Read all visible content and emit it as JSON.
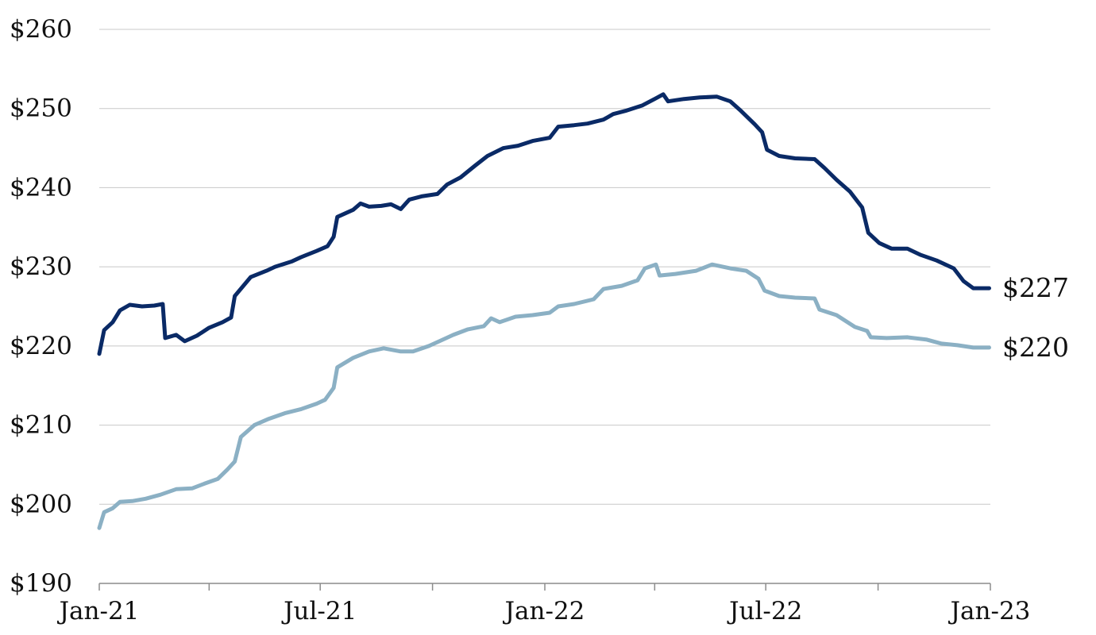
{
  "chart_data": {
    "type": "line",
    "title": "",
    "xlabel": "",
    "ylabel": "",
    "ylim": [
      190,
      260
    ],
    "xlim": [
      "2021-01-01",
      "2023-01-01"
    ],
    "y_ticks": [
      190,
      200,
      210,
      220,
      230,
      240,
      250,
      260
    ],
    "y_tick_labels": [
      "$190",
      "$200",
      "$210",
      "$220",
      "$230",
      "$240",
      "$250",
      "$260"
    ],
    "x_ticks": [
      "2021-01-01",
      "2021-04-01",
      "2021-07-01",
      "2021-10-01",
      "2022-01-01",
      "2022-04-01",
      "2022-07-01",
      "2022-10-01",
      "2023-01-01"
    ],
    "x_tick_labels": [
      {
        "date": "2021-01-01",
        "label": "Jan-21"
      },
      {
        "date": "2021-07-01",
        "label": "Jul-21"
      },
      {
        "date": "2022-01-01",
        "label": "Jan-22"
      },
      {
        "date": "2022-07-01",
        "label": "Jul-22"
      },
      {
        "date": "2023-01-01",
        "label": "Jan-23"
      }
    ],
    "grid": true,
    "legend": "none",
    "series": [
      {
        "color": "#0a2a66",
        "end_label": "$227",
        "points": [
          [
            "2021-01-01",
            219.0
          ],
          [
            "2021-01-05",
            222.0
          ],
          [
            "2021-01-12",
            223.0
          ],
          [
            "2021-01-18",
            224.5
          ],
          [
            "2021-01-26",
            225.2
          ],
          [
            "2021-02-05",
            225.0
          ],
          [
            "2021-02-15",
            225.1
          ],
          [
            "2021-02-22",
            225.3
          ],
          [
            "2021-02-24",
            221.0
          ],
          [
            "2021-03-05",
            221.4
          ],
          [
            "2021-03-12",
            220.6
          ],
          [
            "2021-03-22",
            221.3
          ],
          [
            "2021-04-01",
            222.3
          ],
          [
            "2021-04-12",
            223.0
          ],
          [
            "2021-04-19",
            223.6
          ],
          [
            "2021-04-22",
            226.3
          ],
          [
            "2021-05-05",
            228.7
          ],
          [
            "2021-05-18",
            229.5
          ],
          [
            "2021-05-25",
            230.0
          ],
          [
            "2021-06-08",
            230.7
          ],
          [
            "2021-06-15",
            231.2
          ],
          [
            "2021-06-28",
            232.0
          ],
          [
            "2021-07-07",
            232.6
          ],
          [
            "2021-07-12",
            233.8
          ],
          [
            "2021-07-15",
            236.3
          ],
          [
            "2021-07-28",
            237.2
          ],
          [
            "2021-08-03",
            238.0
          ],
          [
            "2021-08-10",
            237.6
          ],
          [
            "2021-08-20",
            237.7
          ],
          [
            "2021-08-28",
            237.9
          ],
          [
            "2021-09-05",
            237.3
          ],
          [
            "2021-09-12",
            238.5
          ],
          [
            "2021-09-22",
            238.9
          ],
          [
            "2021-10-05",
            239.2
          ],
          [
            "2021-10-13",
            240.4
          ],
          [
            "2021-10-24",
            241.3
          ],
          [
            "2021-11-05",
            242.8
          ],
          [
            "2021-11-15",
            244.0
          ],
          [
            "2021-11-28",
            245.0
          ],
          [
            "2021-12-10",
            245.3
          ],
          [
            "2021-12-22",
            245.9
          ],
          [
            "2022-01-05",
            246.3
          ],
          [
            "2022-01-12",
            247.7
          ],
          [
            "2022-01-25",
            247.9
          ],
          [
            "2022-02-05",
            248.1
          ],
          [
            "2022-02-18",
            248.6
          ],
          [
            "2022-02-26",
            249.3
          ],
          [
            "2022-03-08",
            249.7
          ],
          [
            "2022-03-22",
            250.4
          ],
          [
            "2022-04-02",
            251.3
          ],
          [
            "2022-04-08",
            251.8
          ],
          [
            "2022-04-12",
            250.9
          ],
          [
            "2022-04-25",
            251.2
          ],
          [
            "2022-05-08",
            251.4
          ],
          [
            "2022-05-22",
            251.5
          ],
          [
            "2022-06-02",
            250.9
          ],
          [
            "2022-06-10",
            249.8
          ],
          [
            "2022-06-22",
            248.0
          ],
          [
            "2022-06-28",
            247.0
          ],
          [
            "2022-07-02",
            244.8
          ],
          [
            "2022-07-12",
            244.0
          ],
          [
            "2022-07-25",
            243.7
          ],
          [
            "2022-08-10",
            243.6
          ],
          [
            "2022-08-18",
            242.5
          ],
          [
            "2022-08-28",
            241.0
          ],
          [
            "2022-09-08",
            239.5
          ],
          [
            "2022-09-18",
            237.5
          ],
          [
            "2022-09-23",
            234.3
          ],
          [
            "2022-10-02",
            233.0
          ],
          [
            "2022-10-12",
            232.3
          ],
          [
            "2022-10-25",
            232.3
          ],
          [
            "2022-11-05",
            231.5
          ],
          [
            "2022-11-18",
            230.8
          ],
          [
            "2022-12-02",
            229.8
          ],
          [
            "2022-12-10",
            228.2
          ],
          [
            "2022-12-18",
            227.3
          ],
          [
            "2022-12-31",
            227.3
          ]
        ]
      },
      {
        "color": "#8bb0c4",
        "end_label": "$220",
        "points": [
          [
            "2021-01-01",
            197.0
          ],
          [
            "2021-01-05",
            199.0
          ],
          [
            "2021-01-12",
            199.5
          ],
          [
            "2021-01-18",
            200.3
          ],
          [
            "2021-01-28",
            200.4
          ],
          [
            "2021-02-08",
            200.7
          ],
          [
            "2021-02-20",
            201.2
          ],
          [
            "2021-03-05",
            201.9
          ],
          [
            "2021-03-18",
            202.0
          ],
          [
            "2021-03-28",
            202.6
          ],
          [
            "2021-04-08",
            203.2
          ],
          [
            "2021-04-16",
            204.4
          ],
          [
            "2021-04-22",
            205.4
          ],
          [
            "2021-04-27",
            208.5
          ],
          [
            "2021-05-08",
            210.0
          ],
          [
            "2021-05-20",
            210.8
          ],
          [
            "2021-06-02",
            211.5
          ],
          [
            "2021-06-15",
            212.0
          ],
          [
            "2021-06-28",
            212.7
          ],
          [
            "2021-07-05",
            213.2
          ],
          [
            "2021-07-12",
            214.7
          ],
          [
            "2021-07-15",
            217.3
          ],
          [
            "2021-07-28",
            218.5
          ],
          [
            "2021-08-10",
            219.3
          ],
          [
            "2021-08-22",
            219.7
          ],
          [
            "2021-09-05",
            219.3
          ],
          [
            "2021-09-15",
            219.3
          ],
          [
            "2021-09-28",
            220.0
          ],
          [
            "2021-10-08",
            220.7
          ],
          [
            "2021-10-18",
            221.4
          ],
          [
            "2021-10-30",
            222.1
          ],
          [
            "2021-11-12",
            222.5
          ],
          [
            "2021-11-18",
            223.5
          ],
          [
            "2021-11-25",
            223.0
          ],
          [
            "2021-12-08",
            223.7
          ],
          [
            "2021-12-22",
            223.9
          ],
          [
            "2022-01-05",
            224.2
          ],
          [
            "2022-01-12",
            225.0
          ],
          [
            "2022-01-25",
            225.3
          ],
          [
            "2022-02-10",
            225.9
          ],
          [
            "2022-02-18",
            227.2
          ],
          [
            "2022-03-05",
            227.6
          ],
          [
            "2022-03-18",
            228.3
          ],
          [
            "2022-03-24",
            229.8
          ],
          [
            "2022-04-02",
            230.3
          ],
          [
            "2022-04-05",
            228.9
          ],
          [
            "2022-04-18",
            229.1
          ],
          [
            "2022-05-05",
            229.5
          ],
          [
            "2022-05-18",
            230.3
          ],
          [
            "2022-06-02",
            229.8
          ],
          [
            "2022-06-15",
            229.5
          ],
          [
            "2022-06-25",
            228.5
          ],
          [
            "2022-06-30",
            227.0
          ],
          [
            "2022-07-12",
            226.3
          ],
          [
            "2022-07-25",
            226.1
          ],
          [
            "2022-08-10",
            226.0
          ],
          [
            "2022-08-14",
            224.6
          ],
          [
            "2022-08-28",
            223.9
          ],
          [
            "2022-09-12",
            222.4
          ],
          [
            "2022-09-22",
            221.9
          ],
          [
            "2022-09-25",
            221.1
          ],
          [
            "2022-10-08",
            221.0
          ],
          [
            "2022-10-25",
            221.1
          ],
          [
            "2022-11-10",
            220.8
          ],
          [
            "2022-11-22",
            220.3
          ],
          [
            "2022-12-05",
            220.1
          ],
          [
            "2022-12-18",
            219.8
          ],
          [
            "2022-12-31",
            219.8
          ]
        ]
      }
    ]
  }
}
